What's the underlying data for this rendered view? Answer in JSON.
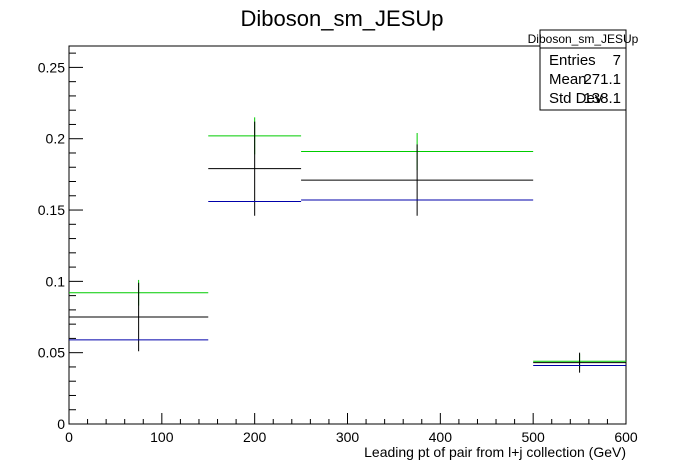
{
  "chart_data": {
    "type": "scatter",
    "title": "Diboson_sm_JESUp",
    "xlabel": "Leading pt of pair from l+j collection (GeV)",
    "ylabel": "",
    "xlim": [
      0,
      600
    ],
    "ylim": [
      0,
      0.265
    ],
    "x_ticks": [
      0,
      100,
      200,
      300,
      400,
      500,
      600
    ],
    "y_ticks": [
      0,
      0.05,
      0.1,
      0.15,
      0.2,
      0.25
    ],
    "x_tick_labels": [
      "0",
      "100",
      "200",
      "300",
      "400",
      "500",
      "600"
    ],
    "y_tick_labels": [
      "0",
      "0.05",
      "0.1",
      "0.15",
      "0.2",
      "0.25"
    ],
    "grid": false,
    "legend": "none",
    "stats_box": {
      "title": "Diboson_sm_JESUp",
      "rows": [
        {
          "label": "Entries",
          "value": "7"
        },
        {
          "label": "Mean",
          "value": "271.1"
        },
        {
          "label": "Std Dev",
          "value": "138.1"
        }
      ],
      "placement": "top-right"
    },
    "series": [
      {
        "color": "#00cc00",
        "points": [
          {
            "x0": 0,
            "x1": 150,
            "x": 75,
            "y": 0.092,
            "yerr": 0.009
          },
          {
            "x0": 150,
            "x1": 250,
            "x": 200,
            "y": 0.202,
            "yerr": 0.013
          },
          {
            "x0": 250,
            "x1": 500,
            "x": 375,
            "y": 0.191,
            "yerr": 0.013
          },
          {
            "x0": 500,
            "x1": 600,
            "x": 550,
            "y": 0.044,
            "yerr": 0.005
          }
        ]
      },
      {
        "color": "#000000",
        "points": [
          {
            "x0": 0,
            "x1": 150,
            "x": 75,
            "y": 0.075,
            "yerr": 0.024
          },
          {
            "x0": 150,
            "x1": 250,
            "x": 200,
            "y": 0.179,
            "yerr": 0.033
          },
          {
            "x0": 250,
            "x1": 500,
            "x": 375,
            "y": 0.171,
            "yerr": 0.025
          },
          {
            "x0": 500,
            "x1": 600,
            "x": 550,
            "y": 0.043,
            "yerr": 0.007
          }
        ]
      },
      {
        "color": "#0000aa",
        "points": [
          {
            "x0": 0,
            "x1": 150,
            "x": 75,
            "y": 0.059,
            "yerr": 0.0
          },
          {
            "x0": 150,
            "x1": 250,
            "x": 200,
            "y": 0.156,
            "yerr": 0.0
          },
          {
            "x0": 250,
            "x1": 500,
            "x": 375,
            "y": 0.157,
            "yerr": 0.0
          },
          {
            "x0": 500,
            "x1": 600,
            "x": 550,
            "y": 0.041,
            "yerr": 0.0
          }
        ]
      }
    ]
  }
}
